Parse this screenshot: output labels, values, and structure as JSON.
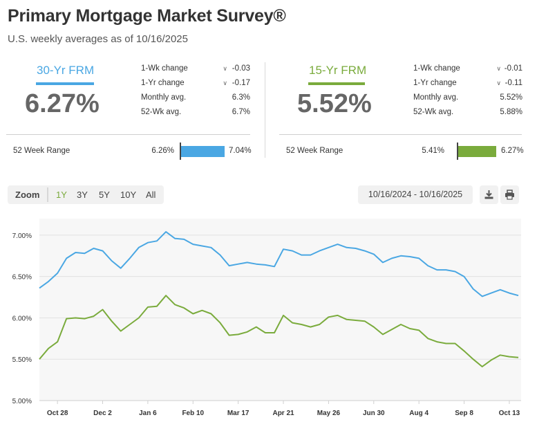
{
  "header": {
    "title": "Primary Mortgage Market Survey®",
    "subtitle": "U.S. weekly averages as of 10/16/2025"
  },
  "frm30": {
    "name": "30-Yr FRM",
    "rate": "6.27%",
    "stats": [
      {
        "label": "1-Wk change",
        "value": "-0.03",
        "chevron": true
      },
      {
        "label": "1-Yr change",
        "value": "-0.17",
        "chevron": true
      },
      {
        "label": "Monthly avg.",
        "value": "6.3%",
        "chevron": false
      },
      {
        "label": "52-Wk avg.",
        "value": "6.7%",
        "chevron": false
      }
    ],
    "range_label": "52 Week Range",
    "range_low": "6.26%",
    "range_high": "7.04%",
    "range_position": 0.01,
    "color": "#4aa7e3"
  },
  "frm15": {
    "name": "15-Yr FRM",
    "rate": "5.52%",
    "stats": [
      {
        "label": "1-Wk change",
        "value": "-0.01",
        "chevron": true
      },
      {
        "label": "1-Yr change",
        "value": "-0.11",
        "chevron": true
      },
      {
        "label": "Monthly avg.",
        "value": "5.52%",
        "chevron": false
      },
      {
        "label": "52-Wk avg.",
        "value": "5.88%",
        "chevron": false
      }
    ],
    "range_label": "52 Week Range",
    "range_low": "5.41%",
    "range_high": "6.27%",
    "range_position": 0.13,
    "color": "#7aab3c"
  },
  "toolbar": {
    "zoom_label": "Zoom",
    "buttons": [
      "1Y",
      "3Y",
      "5Y",
      "10Y",
      "All"
    ],
    "active": "1Y",
    "date_range": "10/16/2024 - 10/16/2025",
    "download_icon": "download-icon",
    "print_icon": "print-icon"
  },
  "chart_data": {
    "type": "line",
    "title": "",
    "xlabel": "",
    "ylabel": "",
    "ylim": [
      5.0,
      7.2
    ],
    "y_ticks": [
      "5.00%",
      "5.50%",
      "6.00%",
      "6.50%",
      "7.00%"
    ],
    "x_tick_labels": [
      "Oct 28",
      "Dec 2",
      "Jan 6",
      "Feb 10",
      "Mar 17",
      "Apr 21",
      "May 26",
      "Jun 30",
      "Aug 4",
      "Sep 8",
      "Oct 13"
    ],
    "grid": true,
    "legend": "none",
    "series": [
      {
        "color": "#4aa7e3",
        "values": [
          6.36,
          6.44,
          6.54,
          6.72,
          6.79,
          6.78,
          6.84,
          6.81,
          6.69,
          6.6,
          6.72,
          6.85,
          6.91,
          6.93,
          7.04,
          6.96,
          6.95,
          6.89,
          6.87,
          6.85,
          6.76,
          6.63,
          6.65,
          6.67,
          6.65,
          6.64,
          6.62,
          6.83,
          6.81,
          6.76,
          6.76,
          6.81,
          6.85,
          6.89,
          6.85,
          6.84,
          6.81,
          6.77,
          6.67,
          6.72,
          6.75,
          6.74,
          6.72,
          6.63,
          6.58,
          6.58,
          6.56,
          6.5,
          6.35,
          6.26,
          6.3,
          6.34,
          6.3,
          6.27
        ]
      },
      {
        "color": "#7aab3c",
        "values": [
          5.5,
          5.63,
          5.71,
          5.99,
          6.0,
          5.99,
          6.02,
          6.1,
          5.96,
          5.84,
          5.92,
          6.0,
          6.13,
          6.14,
          6.27,
          6.16,
          6.12,
          6.05,
          6.09,
          6.05,
          5.94,
          5.79,
          5.8,
          5.83,
          5.89,
          5.82,
          5.82,
          6.03,
          5.94,
          5.92,
          5.89,
          5.92,
          6.01,
          6.03,
          5.98,
          5.97,
          5.96,
          5.89,
          5.8,
          5.86,
          5.92,
          5.87,
          5.85,
          5.75,
          5.71,
          5.69,
          5.69,
          5.6,
          5.5,
          5.41,
          5.49,
          5.55,
          5.53,
          5.52
        ]
      }
    ]
  }
}
